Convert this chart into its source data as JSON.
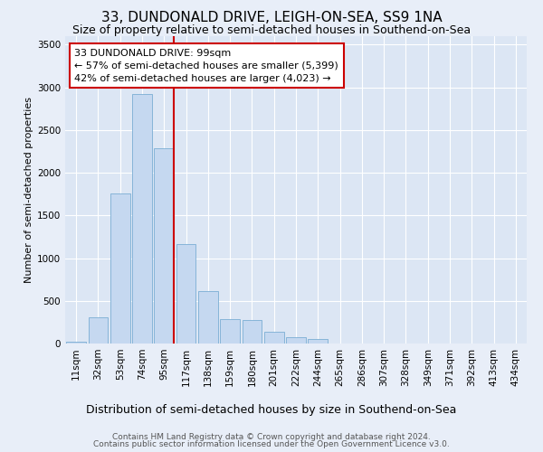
{
  "title": "33, DUNDONALD DRIVE, LEIGH-ON-SEA, SS9 1NA",
  "subtitle": "Size of property relative to semi-detached houses in Southend-on-Sea",
  "xlabel": "Distribution of semi-detached houses by size in Southend-on-Sea",
  "ylabel": "Number of semi-detached properties",
  "categories": [
    "11sqm",
    "32sqm",
    "53sqm",
    "74sqm",
    "95sqm",
    "117sqm",
    "138sqm",
    "159sqm",
    "180sqm",
    "201sqm",
    "222sqm",
    "244sqm",
    "265sqm",
    "286sqm",
    "307sqm",
    "328sqm",
    "349sqm",
    "371sqm",
    "392sqm",
    "413sqm",
    "434sqm"
  ],
  "values": [
    25,
    310,
    1760,
    2920,
    2290,
    1170,
    610,
    290,
    280,
    135,
    70,
    55,
    0,
    0,
    0,
    0,
    0,
    0,
    0,
    0,
    0
  ],
  "bar_color": "#c5d8f0",
  "bar_edge_color": "#7aadd4",
  "vline_color": "#cc0000",
  "vline_x_index": 4,
  "annotation_text": "33 DUNDONALD DRIVE: 99sqm\n← 57% of semi-detached houses are smaller (5,399)\n42% of semi-detached houses are larger (4,023) →",
  "annotation_box_facecolor": "#ffffff",
  "annotation_box_edgecolor": "#cc0000",
  "ylim": [
    0,
    3600
  ],
  "yticks": [
    0,
    500,
    1000,
    1500,
    2000,
    2500,
    3000,
    3500
  ],
  "footer_line1": "Contains HM Land Registry data © Crown copyright and database right 2024.",
  "footer_line2": "Contains public sector information licensed under the Open Government Licence v3.0.",
  "background_color": "#e8eef8",
  "plot_bg_color": "#dce6f4",
  "grid_color": "#ffffff",
  "title_fontsize": 11,
  "subtitle_fontsize": 9,
  "xlabel_fontsize": 9,
  "ylabel_fontsize": 8,
  "tick_fontsize": 7.5,
  "annotation_fontsize": 8,
  "footer_fontsize": 6.5
}
